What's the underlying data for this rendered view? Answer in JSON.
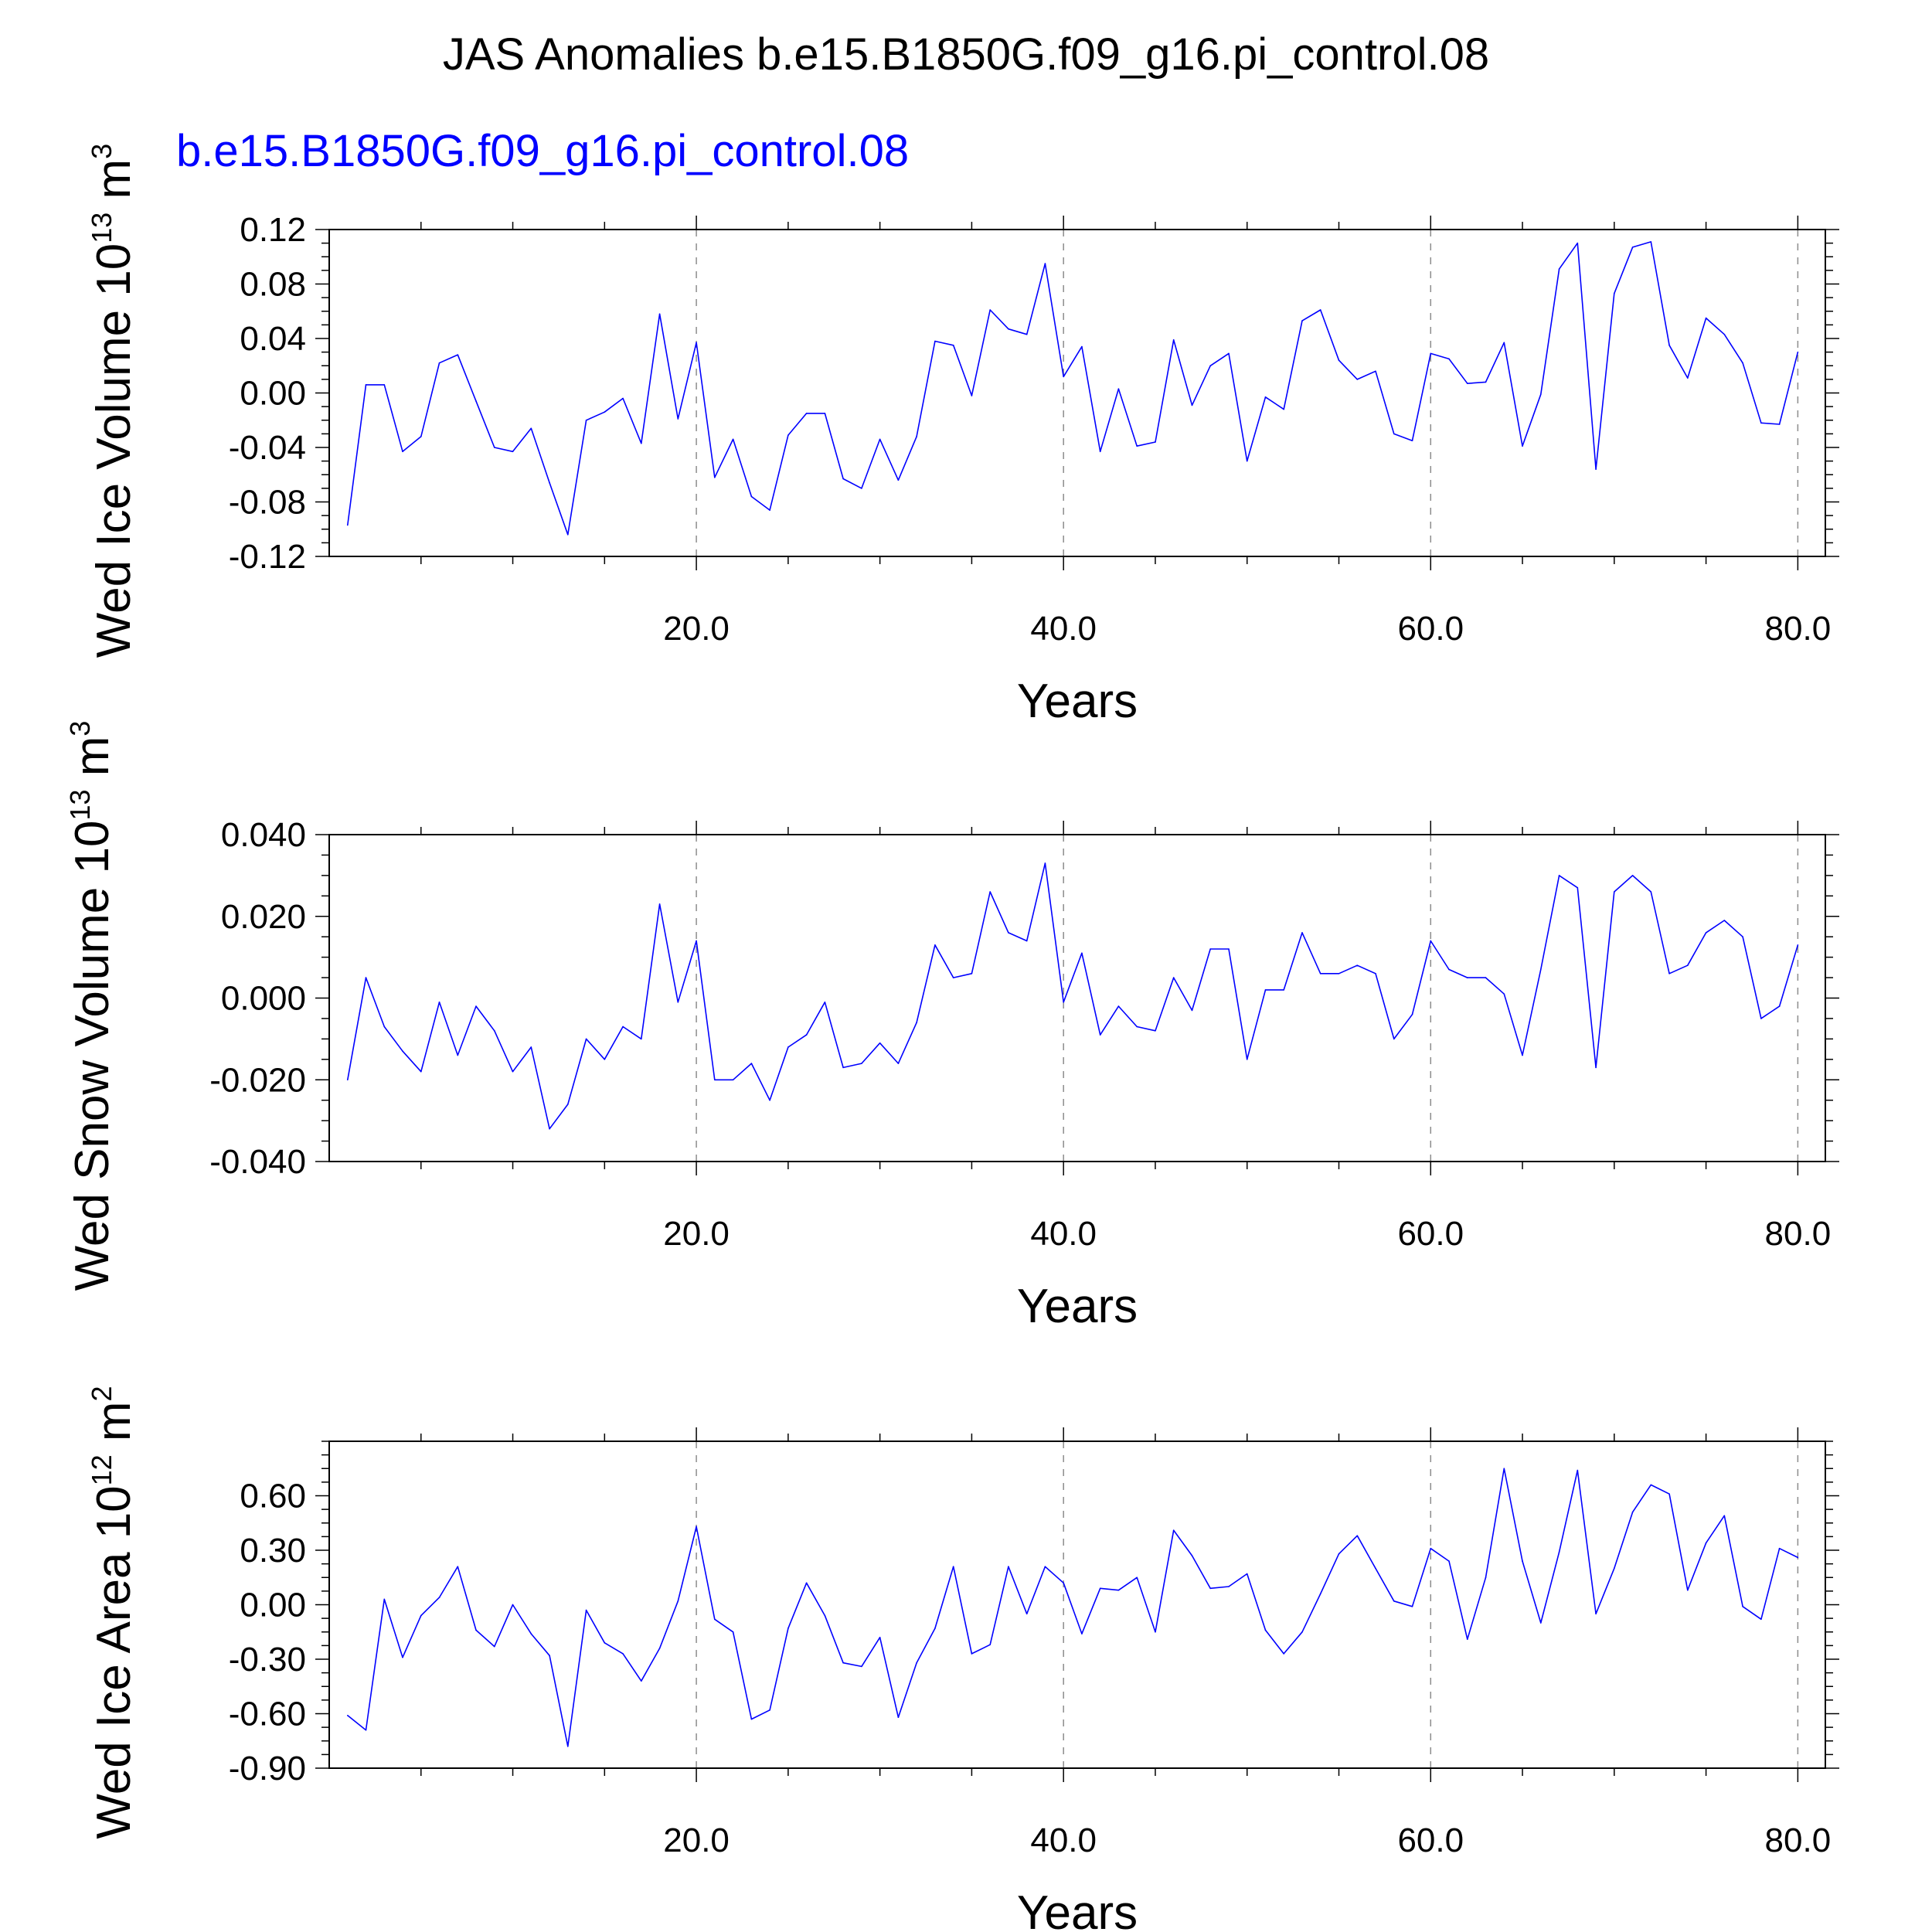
{
  "title": "JAS Anomalies b.e15.B1850G.f09_g16.pi_control.08",
  "case_label": "b.e15.B1850G.f09_g16.pi_control.08",
  "colors": {
    "line": "#0000ff",
    "case_label": "#0000ff",
    "axis": "#000000",
    "grid": "#8c8c8c"
  },
  "chart_data": [
    {
      "type": "line",
      "title": "",
      "ylabel": {
        "prefix": "Wed Ice Volume 10",
        "exp": "13",
        "unit": " m",
        "unit_exp": "3"
      },
      "xlabel": "Years",
      "xlim": [
        0,
        81.5
      ],
      "ylim": [
        -0.12,
        0.12
      ],
      "yticks": [
        "0.12",
        "0.08",
        "0.04",
        "0.00",
        "-0.04",
        "-0.08",
        "-0.12"
      ],
      "ytick_values": [
        0.12,
        0.08,
        0.04,
        0.0,
        -0.04,
        -0.08,
        -0.12
      ],
      "xticks": [
        "20.0",
        "40.0",
        "60.0",
        "80.0"
      ],
      "xtick_values": [
        20,
        40,
        60,
        80
      ],
      "grid": "vertical dashed at major x ticks",
      "series": [
        {
          "x_start": 1,
          "values": [
            -0.097,
            0.006,
            0.006,
            -0.043,
            -0.032,
            0.022,
            0.028,
            -0.006,
            -0.04,
            -0.043,
            -0.026,
            -0.066,
            -0.104,
            -0.02,
            -0.014,
            -0.004,
            -0.037,
            0.058,
            -0.019,
            0.037,
            -0.062,
            -0.034,
            -0.076,
            -0.086,
            -0.031,
            -0.015,
            -0.015,
            -0.063,
            -0.07,
            -0.034,
            -0.064,
            -0.032,
            0.038,
            0.035,
            -0.002,
            0.061,
            0.047,
            0.043,
            0.095,
            0.012,
            0.034,
            -0.043,
            0.003,
            -0.039,
            -0.036,
            0.039,
            -0.009,
            0.02,
            0.029,
            -0.05,
            -0.003,
            -0.012,
            0.053,
            0.061,
            0.024,
            0.01,
            0.016,
            -0.03,
            -0.035,
            0.029,
            0.025,
            0.007,
            0.008,
            0.037,
            -0.039,
            -0.001,
            0.091,
            0.11,
            -0.056,
            0.073,
            0.107,
            0.111,
            0.035,
            0.011,
            0.055,
            0.043,
            0.022,
            -0.022,
            -0.023,
            0.03
          ]
        }
      ]
    },
    {
      "type": "line",
      "title": "",
      "ylabel": {
        "prefix": "Wed Snow Volume 10",
        "exp": "13",
        "unit": " m",
        "unit_exp": "3"
      },
      "xlabel": "Years",
      "xlim": [
        0,
        81.5
      ],
      "ylim": [
        -0.04,
        0.04
      ],
      "yticks": [
        "0.040",
        "0.020",
        "0.000",
        "-0.020",
        "-0.040"
      ],
      "ytick_values": [
        0.04,
        0.02,
        0.0,
        -0.02,
        -0.04
      ],
      "xticks": [
        "20.0",
        "40.0",
        "60.0",
        "80.0"
      ],
      "xtick_values": [
        20,
        40,
        60,
        80
      ],
      "grid": "vertical dashed at major x ticks",
      "series": [
        {
          "x_start": 1,
          "values": [
            -0.02,
            0.005,
            -0.007,
            -0.013,
            -0.018,
            -0.001,
            -0.014,
            -0.002,
            -0.008,
            -0.018,
            -0.012,
            -0.032,
            -0.026,
            -0.01,
            -0.015,
            -0.007,
            -0.01,
            0.023,
            -0.001,
            0.014,
            -0.02,
            -0.02,
            -0.016,
            -0.025,
            -0.012,
            -0.009,
            -0.001,
            -0.017,
            -0.016,
            -0.011,
            -0.016,
            -0.006,
            0.013,
            0.005,
            0.006,
            0.026,
            0.016,
            0.014,
            0.033,
            -0.001,
            0.011,
            -0.009,
            -0.002,
            -0.007,
            -0.008,
            0.005,
            -0.003,
            0.012,
            0.012,
            -0.015,
            0.002,
            0.002,
            0.016,
            0.006,
            0.006,
            0.008,
            0.006,
            -0.01,
            -0.004,
            0.014,
            0.007,
            0.005,
            0.005,
            0.001,
            -0.014,
            0.007,
            0.03,
            0.027,
            -0.017,
            0.026,
            0.03,
            0.026,
            0.006,
            0.008,
            0.016,
            0.019,
            0.015,
            -0.005,
            -0.002,
            0.013
          ]
        }
      ]
    },
    {
      "type": "line",
      "title": "",
      "ylabel": {
        "prefix": "Wed Ice Area 10",
        "exp": "12",
        "unit": " m",
        "unit_exp": "2"
      },
      "xlabel": "Years",
      "xlim": [
        0,
        81.5
      ],
      "ylim": [
        -0.9,
        0.9
      ],
      "yticks": [
        "0.60",
        "0.30",
        "0.00",
        "-0.30",
        "-0.60",
        "-0.90"
      ],
      "ytick_values": [
        0.6,
        0.3,
        0.0,
        -0.3,
        -0.6,
        -0.9
      ],
      "xticks": [
        "20.0",
        "40.0",
        "60.0",
        "80.0"
      ],
      "xtick_values": [
        20,
        40,
        60,
        80
      ],
      "grid": "vertical dashed at major x ticks",
      "series": [
        {
          "x_start": 1,
          "values": [
            -0.61,
            -0.69,
            0.03,
            -0.29,
            -0.06,
            0.04,
            0.21,
            -0.14,
            -0.23,
            0.0,
            -0.16,
            -0.28,
            -0.78,
            -0.03,
            -0.21,
            -0.27,
            -0.42,
            -0.24,
            0.02,
            0.43,
            -0.08,
            -0.15,
            -0.63,
            -0.58,
            -0.13,
            0.12,
            -0.06,
            -0.32,
            -0.34,
            -0.18,
            -0.62,
            -0.32,
            -0.13,
            0.21,
            -0.27,
            -0.22,
            0.21,
            -0.05,
            0.21,
            0.12,
            -0.16,
            0.09,
            0.08,
            0.15,
            -0.15,
            0.41,
            0.27,
            0.09,
            0.1,
            0.17,
            -0.14,
            -0.27,
            -0.15,
            0.06,
            0.28,
            0.38,
            0.2,
            0.02,
            -0.01,
            0.31,
            0.24,
            -0.19,
            0.15,
            0.75,
            0.24,
            -0.1,
            0.29,
            0.74,
            -0.05,
            0.2,
            0.51,
            0.66,
            0.61,
            0.08,
            0.34,
            0.49,
            -0.01,
            -0.08,
            0.31,
            0.26
          ]
        }
      ]
    }
  ]
}
